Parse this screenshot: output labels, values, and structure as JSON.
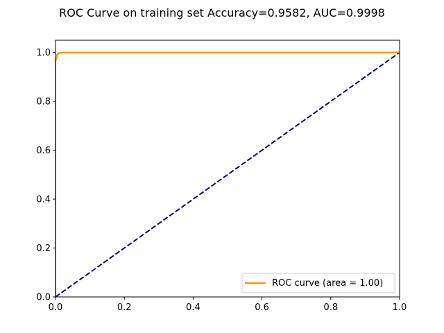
{
  "chart_data": {
    "type": "line",
    "title": "ROC Curve on training set Accuracy=0.9582, AUC=0.9998",
    "xlabel": "",
    "ylabel": "",
    "xlim": [
      0.0,
      1.0
    ],
    "ylim": [
      0.0,
      1.05
    ],
    "grid": false,
    "legend_position": "lower-right",
    "x_ticks": [
      "0.0",
      "0.2",
      "0.4",
      "0.6",
      "0.8",
      "1.0"
    ],
    "y_ticks": [
      "0.0",
      "0.2",
      "0.4",
      "0.6",
      "0.8",
      "1.0"
    ],
    "x_tick_values": [
      0.0,
      0.2,
      0.4,
      0.6,
      0.8,
      1.0
    ],
    "y_tick_values": [
      0.0,
      0.2,
      0.4,
      0.6,
      0.8,
      1.0
    ],
    "series": [
      {
        "name": "ROC curve (area = 1.00)",
        "color": "#ff8c00",
        "style": "solid",
        "x": [
          0.0,
          0.0,
          0.002,
          0.002,
          0.004,
          0.004,
          0.006,
          0.006,
          0.008,
          0.008,
          0.012,
          0.012,
          0.02,
          0.02,
          1.0
        ],
        "y": [
          0.0,
          0.97,
          0.97,
          0.98,
          0.98,
          0.99,
          0.99,
          0.994,
          0.994,
          0.997,
          0.997,
          0.999,
          0.999,
          1.0,
          1.0
        ]
      },
      {
        "name": "",
        "color": "#000080",
        "style": "dashed",
        "x": [
          0.0,
          1.0
        ],
        "y": [
          0.0,
          1.0
        ]
      }
    ]
  }
}
